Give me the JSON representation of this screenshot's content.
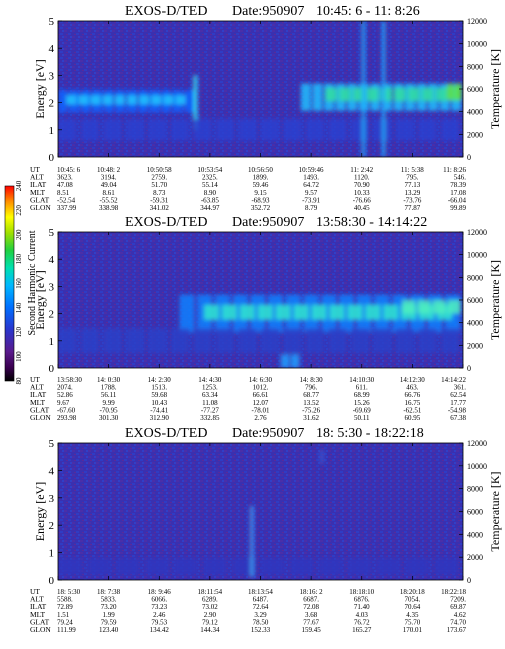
{
  "colorbar": {
    "label": "Second Harmonic Current",
    "ticks": [
      "80",
      "100",
      "120",
      "140",
      "160",
      "180",
      "200",
      "220",
      "240"
    ]
  },
  "chart_data": [
    {
      "type": "heatmap",
      "title": "EXOS-D/TED",
      "date_label": "Date:950907",
      "time_range": "10:45: 6 - 11: 8:26",
      "ylabel": "Energy [eV]",
      "y2label": "Temperature [K]",
      "ylim": [
        0,
        5
      ],
      "y2lim": [
        0,
        12000
      ],
      "yticks": [
        "0",
        "1",
        "2",
        "3",
        "4",
        "5"
      ],
      "y2ticks": [
        "0",
        "2000",
        "4000",
        "6000",
        "8000",
        "10000",
        "12000"
      ],
      "row_labels": [
        "UT",
        "ALT",
        "ILAT",
        "MLT",
        "GLAT",
        "GLON"
      ],
      "columns": [
        [
          "10:45: 6",
          "3623.",
          "47.08",
          "8.51",
          "-52.54",
          "337.99"
        ],
        [
          "10:48: 2",
          "3194.",
          "49.04",
          "8.61",
          "-55.52",
          "338.98"
        ],
        [
          "10:50:58",
          "2759.",
          "51.70",
          "8.73",
          "-59.31",
          "341.02"
        ],
        [
          "10:53:54",
          "2325.",
          "55.14",
          "8.90",
          "-63.85",
          "344.97"
        ],
        [
          "10:56:50",
          "1899.",
          "59.46",
          "9.15",
          "-68.93",
          "352.72"
        ],
        [
          "10:59:46",
          "1493.",
          "64.72",
          "9.57",
          "-73.91",
          "8.79"
        ],
        [
          "11: 2:42",
          "1120.",
          "70.90",
          "10.33",
          "-76.66",
          "40.45"
        ],
        [
          "11: 5:38",
          "795.",
          "77.13",
          "13.29",
          "-73.76",
          "77.87"
        ],
        [
          "11: 8:26",
          "546.",
          "78.39",
          "17.08",
          "-66.04",
          "99.89"
        ]
      ]
    },
    {
      "type": "heatmap",
      "title": "EXOS-D/TED",
      "date_label": "Date:950907",
      "time_range": "13:58:30 - 14:14:22",
      "ylabel": "Energy [eV]",
      "y2label": "Temperature [K]",
      "ylim": [
        0,
        5
      ],
      "y2lim": [
        0,
        12000
      ],
      "yticks": [
        "0",
        "1",
        "2",
        "3",
        "4",
        "5"
      ],
      "y2ticks": [
        "0",
        "2000",
        "4000",
        "6000",
        "8000",
        "10000",
        "12000"
      ],
      "row_labels": [
        "UT",
        "ALT",
        "ILAT",
        "MLT",
        "GLAT",
        "GLON"
      ],
      "columns": [
        [
          "13:58:30",
          "2074.",
          "52.86",
          "9.67",
          "-67.60",
          "293.98"
        ],
        [
          "14: 0:30",
          "1788.",
          "56.11",
          "9.99",
          "-70.95",
          "301.30"
        ],
        [
          "14: 2:30",
          "1513.",
          "59.68",
          "10.43",
          "-74.41",
          "312.90"
        ],
        [
          "14: 4:30",
          "1253.",
          "63.34",
          "11.08",
          "-77.27",
          "332.85"
        ],
        [
          "14: 6:30",
          "1012.",
          "66.61",
          "12.07",
          "-78.01",
          "2.76"
        ],
        [
          "14: 8:30",
          "796.",
          "68.77",
          "13.52",
          "-75.26",
          "31.62"
        ],
        [
          "14:10:30",
          "611.",
          "68.99",
          "15.26",
          "-69.69",
          "50.11"
        ],
        [
          "14:12:30",
          "463.",
          "66.76",
          "16.75",
          "-62.51",
          "60.95"
        ],
        [
          "14:14:22",
          "361.",
          "62.54",
          "17.77",
          "-54.98",
          "67.38"
        ]
      ]
    },
    {
      "type": "heatmap",
      "title": "EXOS-D/TED",
      "date_label": "Date:950907",
      "time_range": "18: 5:30 - 18:22:18",
      "ylabel": "Energy [eV]",
      "y2label": "Temperature [K]",
      "ylim": [
        0,
        5
      ],
      "y2lim": [
        0,
        12000
      ],
      "yticks": [
        "0",
        "1",
        "2",
        "3",
        "4",
        "5"
      ],
      "y2ticks": [
        "0",
        "2000",
        "4000",
        "6000",
        "8000",
        "10000",
        "12000"
      ],
      "row_labels": [
        "UT",
        "ALT",
        "ILAT",
        "MLT",
        "GLAT",
        "GLON"
      ],
      "columns": [
        [
          "18: 5:30",
          "5588.",
          "72.89",
          "1.51",
          "79.24",
          "111.99"
        ],
        [
          "18: 7:38",
          "5833.",
          "73.20",
          "1.99",
          "79.59",
          "123.40"
        ],
        [
          "18: 9:46",
          "6066.",
          "73.23",
          "2.46",
          "79.53",
          "134.42"
        ],
        [
          "18:11:54",
          "6289.",
          "73.02",
          "2.90",
          "79.12",
          "144.34"
        ],
        [
          "18:13:54",
          "6487.",
          "72.64",
          "3.29",
          "78.50",
          "152.33"
        ],
        [
          "18:16: 2",
          "6687.",
          "72.08",
          "3.68",
          "77.67",
          "159.45"
        ],
        [
          "18:18:10",
          "6876.",
          "71.40",
          "4.03",
          "76.72",
          "165.27"
        ],
        [
          "18:20:18",
          "7054.",
          "70.64",
          "4.35",
          "75.70",
          "170.01"
        ],
        [
          "18:22:18",
          "7209.",
          "69.87",
          "4.62",
          "74.70",
          "173.67"
        ]
      ]
    }
  ]
}
